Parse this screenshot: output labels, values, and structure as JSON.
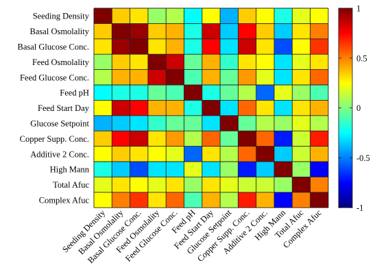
{
  "chart_data": {
    "type": "heatmap",
    "title": "",
    "variables": [
      "Seeding Density",
      "Basal Osmolality",
      "Basal Glucose Conc.",
      "Feed Osmolality",
      "Feed Glucose Conc.",
      "Feed pH",
      "Feed Start Day",
      "Glucose Setpoint",
      "Copper Supp. Conc.",
      "Additive 2 Conc.",
      "High Mann",
      "Total Afuc",
      "Complex Afuc"
    ],
    "matrix": [
      [
        1.0,
        0.35,
        0.3,
        0.05,
        0.1,
        -0.25,
        0.25,
        -0.4,
        0.35,
        0.25,
        -0.2,
        0.2,
        0.25
      ],
      [
        0.35,
        1.0,
        0.95,
        0.35,
        0.4,
        -0.2,
        0.85,
        -0.35,
        0.75,
        0.35,
        -0.35,
        0.3,
        0.5
      ],
      [
        0.3,
        0.95,
        1.0,
        0.3,
        0.4,
        -0.2,
        0.75,
        -0.3,
        0.85,
        0.3,
        -0.6,
        0.25,
        0.65
      ],
      [
        0.05,
        0.35,
        0.3,
        1.0,
        0.85,
        -0.05,
        0.4,
        -0.15,
        0.3,
        0.25,
        -0.3,
        0.2,
        0.3
      ],
      [
        0.1,
        0.4,
        0.4,
        0.85,
        1.0,
        -0.1,
        0.4,
        -0.05,
        0.45,
        0.2,
        -0.3,
        0.3,
        0.55
      ],
      [
        -0.25,
        -0.2,
        -0.2,
        -0.05,
        -0.1,
        1.0,
        -0.2,
        -0.05,
        0.1,
        -0.55,
        0.2,
        0.05,
        -0.1
      ],
      [
        0.25,
        0.85,
        0.75,
        0.4,
        0.4,
        -0.2,
        1.0,
        -0.3,
        0.55,
        0.3,
        -0.3,
        0.3,
        0.4
      ],
      [
        -0.4,
        -0.35,
        -0.3,
        -0.15,
        -0.05,
        -0.05,
        -0.3,
        1.0,
        -0.05,
        0.1,
        0.05,
        0.2,
        0.1
      ],
      [
        0.35,
        0.75,
        0.85,
        0.3,
        0.45,
        0.1,
        0.55,
        -0.05,
        1.0,
        0.55,
        -0.7,
        0.15,
        0.7
      ],
      [
        0.25,
        0.35,
        0.3,
        0.25,
        0.2,
        -0.55,
        0.3,
        0.1,
        0.55,
        1.0,
        -0.35,
        0.15,
        0.4
      ],
      [
        -0.2,
        -0.35,
        -0.6,
        -0.3,
        -0.3,
        0.2,
        -0.3,
        0.05,
        -0.7,
        -0.35,
        1.0,
        0.05,
        -0.75
      ],
      [
        0.2,
        0.3,
        0.25,
        0.2,
        0.3,
        0.05,
        0.3,
        0.2,
        0.15,
        0.15,
        0.05,
        1.0,
        0.5
      ],
      [
        0.25,
        0.5,
        0.65,
        0.3,
        0.55,
        -0.1,
        0.4,
        0.1,
        0.7,
        0.4,
        -0.75,
        0.5,
        1.0
      ]
    ],
    "colorbar": {
      "min": -1,
      "max": 1,
      "ticks": [
        1,
        0.5,
        0,
        -0.5,
        -1
      ],
      "tick_labels": [
        "1",
        "0.5",
        "0",
        "-0.5",
        "-1"
      ],
      "colormap": "jet"
    }
  }
}
